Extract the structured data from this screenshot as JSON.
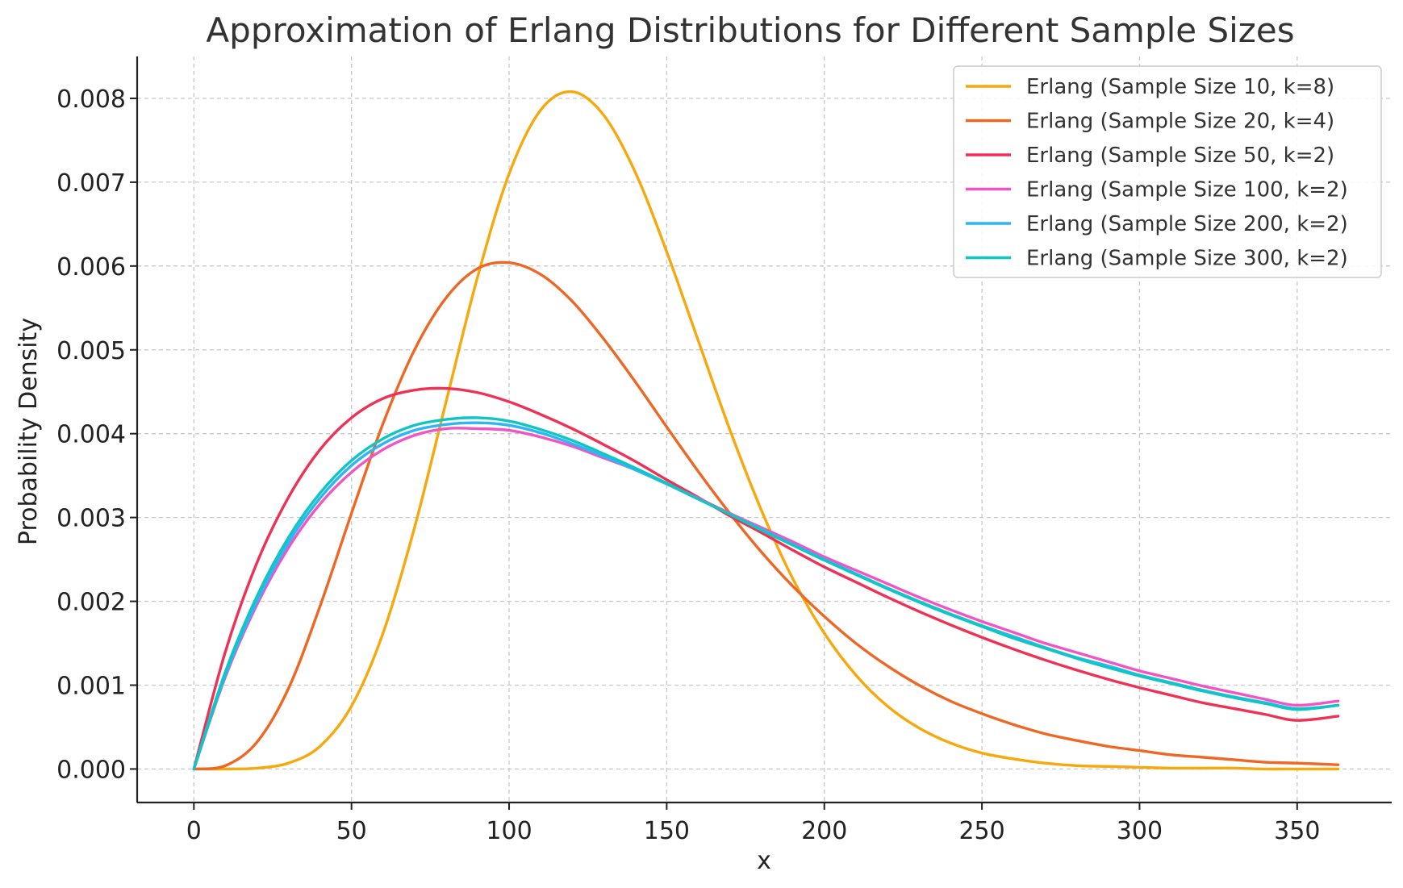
{
  "chart_data": {
    "type": "line",
    "title": "Approximation of Erlang Distributions for Different Sample Sizes",
    "xlabel": "x",
    "ylabel": "Probability Density",
    "xlim": [
      -18,
      380
    ],
    "ylim": [
      -0.0004,
      0.0085
    ],
    "x_ticks": [
      0,
      50,
      100,
      150,
      200,
      250,
      300,
      350
    ],
    "x_tick_labels": [
      "0",
      "50",
      "100",
      "150",
      "200",
      "250",
      "300",
      "350"
    ],
    "y_ticks": [
      0.0,
      0.001,
      0.002,
      0.003,
      0.004,
      0.005,
      0.006,
      0.007,
      0.008
    ],
    "y_tick_labels": [
      "0.000",
      "0.001",
      "0.002",
      "0.003",
      "0.004",
      "0.005",
      "0.006",
      "0.007",
      "0.008"
    ],
    "grid": true,
    "legend_position": "top-right",
    "x": [
      0,
      10,
      20,
      30,
      40,
      50,
      60,
      70,
      80,
      90,
      100,
      110,
      120,
      130,
      140,
      150,
      160,
      170,
      180,
      190,
      200,
      210,
      220,
      230,
      240,
      250,
      260,
      270,
      280,
      290,
      300,
      310,
      320,
      330,
      340,
      350,
      363
    ],
    "series": [
      {
        "name": "Erlang (Sample Size 10, k=8)",
        "color": "#f7a80c",
        "values": [
          0.0,
          0.0,
          1e-05,
          7e-05,
          0.00027,
          0.00075,
          0.00162,
          0.00288,
          0.00438,
          0.00587,
          0.0071,
          0.00786,
          0.00808,
          0.0078,
          0.00712,
          0.00617,
          0.00511,
          0.00405,
          0.00309,
          0.00227,
          0.00162,
          0.00112,
          0.00075,
          0.00049,
          0.00031,
          0.00019,
          0.00012,
          7e-05,
          4e-05,
          3e-05,
          2e-05,
          1e-05,
          1e-05,
          1e-05,
          0.0,
          0.0,
          0.0
        ]
      },
      {
        "name": "Erlang (Sample Size 20, k=4)",
        "color": "#ee6724",
        "values": [
          0.0,
          4e-05,
          0.00032,
          0.00096,
          0.00194,
          0.00305,
          0.00412,
          0.005,
          0.00562,
          0.00597,
          0.00604,
          0.0059,
          0.00558,
          0.00513,
          0.00462,
          0.00408,
          0.00355,
          0.00305,
          0.00259,
          0.00218,
          0.00182,
          0.0015,
          0.00123,
          0.001,
          0.00081,
          0.00066,
          0.00053,
          0.00042,
          0.00034,
          0.00027,
          0.00022,
          0.00017,
          0.00014,
          0.00011,
          8e-05,
          7e-05,
          5e-05
        ]
      },
      {
        "name": "Erlang (Sample Size 50, k=2)",
        "color": "#ee3155",
        "values": [
          0.0,
          0.0014,
          0.00246,
          0.00324,
          0.00381,
          0.00419,
          0.00442,
          0.00452,
          0.00454,
          0.00449,
          0.00438,
          0.00423,
          0.00406,
          0.00387,
          0.00367,
          0.00345,
          0.00324,
          0.00302,
          0.00282,
          0.00261,
          0.00241,
          0.00223,
          0.00205,
          0.00188,
          0.00172,
          0.00157,
          0.00143,
          0.0013,
          0.00118,
          0.00107,
          0.00097,
          0.00088,
          0.00079,
          0.00072,
          0.00065,
          0.00058,
          0.00063
        ]
      },
      {
        "name": "Erlang (Sample Size 100, k=2)",
        "color": "#f155c5",
        "values": [
          0.0,
          0.0011,
          0.00196,
          0.00264,
          0.00316,
          0.00354,
          0.00381,
          0.00398,
          0.00406,
          0.00406,
          0.00404,
          0.00396,
          0.00385,
          0.00371,
          0.00357,
          0.0034,
          0.00323,
          0.00305,
          0.00288,
          0.00271,
          0.00253,
          0.00237,
          0.00221,
          0.00205,
          0.0019,
          0.00176,
          0.00163,
          0.0015,
          0.00139,
          0.00128,
          0.00117,
          0.00108,
          0.00099,
          0.00091,
          0.00083,
          0.00076,
          0.00081
        ]
      },
      {
        "name": "Erlang (Sample Size 200, k=2)",
        "color": "#2db5f5",
        "values": [
          0.0,
          0.00112,
          0.002,
          0.0027,
          0.00323,
          0.00362,
          0.00388,
          0.00404,
          0.00411,
          0.00413,
          0.0041,
          0.00401,
          0.00388,
          0.00373,
          0.00357,
          0.0034,
          0.00322,
          0.00304,
          0.00286,
          0.00268,
          0.0025,
          0.00233,
          0.00216,
          0.002,
          0.00185,
          0.00171,
          0.00158,
          0.00145,
          0.00133,
          0.00123,
          0.00112,
          0.00103,
          0.00094,
          0.00086,
          0.00079,
          0.00072,
          0.00076
        ]
      },
      {
        "name": "Erlang (Sample Size 300, k=2)",
        "color": "#0fc6c2",
        "values": [
          0.0,
          0.00116,
          0.00206,
          0.00276,
          0.00329,
          0.00368,
          0.00394,
          0.0041,
          0.00417,
          0.00419,
          0.00415,
          0.00405,
          0.00392,
          0.00376,
          0.00359,
          0.00341,
          0.00322,
          0.00304,
          0.00285,
          0.00267,
          0.00249,
          0.00232,
          0.00215,
          0.00199,
          0.00184,
          0.0017,
          0.00156,
          0.00144,
          0.00132,
          0.00121,
          0.00111,
          0.00102,
          0.00093,
          0.00085,
          0.00078,
          0.00071,
          0.00076
        ]
      }
    ]
  }
}
